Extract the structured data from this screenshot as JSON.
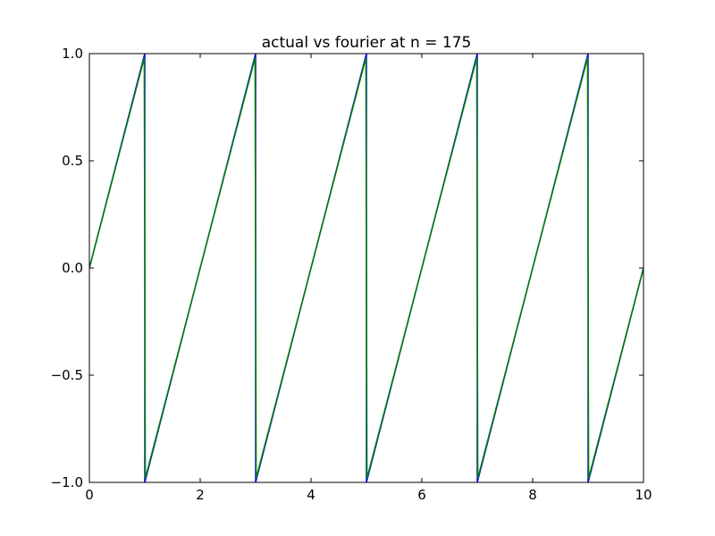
{
  "chart_data": {
    "type": "line",
    "title": "actual vs fourier at n = 175",
    "xlabel": "",
    "ylabel": "",
    "xlim": [
      0,
      10
    ],
    "ylim": [
      -1.0,
      1.0
    ],
    "grid": false,
    "legend": "none",
    "x_ticks": [
      0,
      2,
      4,
      6,
      8,
      10
    ],
    "x_tick_labels": [
      "0",
      "2",
      "4",
      "6",
      "8",
      "10"
    ],
    "y_ticks": [
      -1.0,
      -0.5,
      0.0,
      0.5,
      1.0
    ],
    "y_tick_labels": [
      "−1.0",
      "−0.5",
      "0.0",
      "0.5",
      "1.0"
    ],
    "series": [
      {
        "color": "#0000ff",
        "x": [
          0,
          1,
          1,
          3,
          3,
          5,
          5,
          7,
          7,
          9,
          9,
          10
        ],
        "y": [
          0,
          1,
          -1,
          1,
          -1,
          1,
          -1,
          1,
          -1,
          1,
          -1,
          0
        ]
      },
      {
        "color": "#007f00",
        "x": [
          0,
          0.99,
          1,
          1.01,
          2.99,
          3,
          3.01,
          4.99,
          5,
          5.01,
          6.99,
          7,
          7.01,
          8.99,
          9,
          9.01,
          10
        ],
        "y": [
          0,
          0.98,
          0,
          -0.98,
          0.98,
          0,
          -0.98,
          0.98,
          0,
          -0.98,
          0.98,
          0,
          -0.98,
          0.98,
          0,
          -0.98,
          0
        ]
      }
    ]
  }
}
